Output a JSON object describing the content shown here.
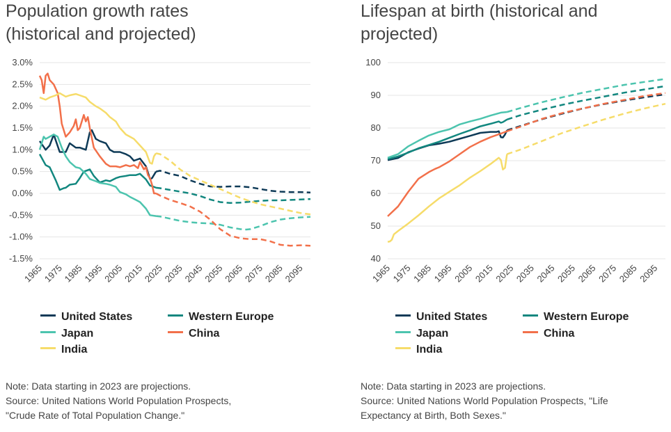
{
  "colors": {
    "United States": "#0e3a57",
    "Western Europe": "#12877f",
    "Japan": "#4cc4ae",
    "China": "#f2704a",
    "India": "#f6dc6a"
  },
  "chart_data": [
    {
      "type": "line",
      "title": "Population growth rates (historical and projected)",
      "ylim": [
        -1.5,
        3.0
      ],
      "yticks": [
        -1.5,
        -1.0,
        -0.5,
        0.0,
        0.5,
        1.0,
        1.5,
        2.0,
        2.5,
        3.0
      ],
      "ytick_labels": [
        "-1.5%",
        "-1.0%",
        "-0.5%",
        "0.0%",
        "0.5%",
        "1.0%",
        "1.5%",
        "2.0%",
        "2.5%",
        "3.0%"
      ],
      "xlim": [
        1965,
        2100
      ],
      "xticks": [
        1965,
        1975,
        1985,
        1995,
        2005,
        2015,
        2025,
        2035,
        2045,
        2055,
        2065,
        2075,
        2085,
        2095
      ],
      "xtick_labels": [
        "1965",
        "1975",
        "1985",
        "1995",
        "2005",
        "2015",
        "2025",
        "2035",
        "2045",
        "2055",
        "2065",
        "2075",
        "2085",
        "2095"
      ],
      "projection_start": 2023,
      "legend": [
        "United States",
        "Western Europe",
        "Japan",
        "China",
        "India"
      ],
      "series": [
        {
          "name": "United States",
          "x": [
            1965,
            1968,
            1970,
            1972,
            1975,
            1978,
            1980,
            1983,
            1985,
            1988,
            1990,
            1991,
            1993,
            1995,
            1998,
            2000,
            2002,
            2005,
            2008,
            2010,
            2012,
            2015,
            2018,
            2020,
            2021,
            2023,
            2025,
            2030,
            2035,
            2040,
            2045,
            2050,
            2055,
            2060,
            2065,
            2070,
            2075,
            2080,
            2085,
            2090,
            2095,
            2100
          ],
          "y": [
            1.2,
            1.0,
            1.1,
            1.35,
            0.95,
            0.95,
            1.15,
            1.05,
            1.05,
            1.0,
            1.4,
            1.45,
            1.25,
            1.2,
            1.15,
            1.0,
            0.95,
            0.95,
            0.9,
            0.85,
            0.75,
            0.8,
            0.62,
            0.33,
            0.35,
            0.5,
            0.52,
            0.45,
            0.4,
            0.3,
            0.22,
            0.16,
            0.15,
            0.16,
            0.16,
            0.14,
            0.1,
            0.06,
            0.04,
            0.03,
            0.03,
            0.02
          ]
        },
        {
          "name": "Western Europe",
          "x": [
            1965,
            1968,
            1970,
            1973,
            1975,
            1977,
            1978,
            1980,
            1983,
            1985,
            1987,
            1990,
            1992,
            1995,
            1998,
            2000,
            2003,
            2005,
            2008,
            2010,
            2013,
            2015,
            2018,
            2020,
            2022,
            2023,
            2025,
            2030,
            2035,
            2040,
            2045,
            2050,
            2055,
            2060,
            2065,
            2070,
            2075,
            2080,
            2085,
            2090,
            2095,
            2100
          ],
          "y": [
            0.9,
            0.65,
            0.6,
            0.3,
            0.08,
            0.12,
            0.13,
            0.2,
            0.22,
            0.35,
            0.5,
            0.55,
            0.4,
            0.25,
            0.3,
            0.28,
            0.35,
            0.38,
            0.4,
            0.42,
            0.42,
            0.45,
            0.32,
            0.18,
            0.15,
            0.13,
            0.12,
            0.08,
            0.04,
            0.0,
            -0.06,
            -0.14,
            -0.2,
            -0.22,
            -0.21,
            -0.19,
            -0.17,
            -0.16,
            -0.16,
            -0.15,
            -0.14,
            -0.13
          ]
        },
        {
          "name": "Japan",
          "x": [
            1965,
            1967,
            1968,
            1970,
            1972,
            1974,
            1976,
            1978,
            1980,
            1983,
            1985,
            1988,
            1990,
            1993,
            1995,
            1998,
            2000,
            2003,
            2005,
            2008,
            2010,
            2013,
            2015,
            2018,
            2020,
            2023,
            2025,
            2030,
            2035,
            2040,
            2045,
            2050,
            2055,
            2060,
            2065,
            2068,
            2070,
            2075,
            2080,
            2085,
            2090,
            2095,
            2100
          ],
          "y": [
            1.0,
            1.3,
            1.25,
            1.3,
            1.35,
            1.3,
            1.05,
            0.85,
            0.72,
            0.6,
            0.58,
            0.45,
            0.33,
            0.28,
            0.24,
            0.22,
            0.2,
            0.15,
            0.03,
            -0.02,
            -0.08,
            -0.15,
            -0.2,
            -0.35,
            -0.5,
            -0.52,
            -0.53,
            -0.58,
            -0.63,
            -0.66,
            -0.68,
            -0.69,
            -0.72,
            -0.78,
            -0.82,
            -0.83,
            -0.82,
            -0.75,
            -0.66,
            -0.6,
            -0.57,
            -0.55,
            -0.54
          ]
        },
        {
          "name": "China",
          "x": [
            1965,
            1966,
            1967,
            1968,
            1969,
            1970,
            1972,
            1974,
            1975,
            1976,
            1978,
            1980,
            1982,
            1983,
            1984,
            1985,
            1986,
            1987,
            1988,
            1989,
            1990,
            1992,
            1995,
            1998,
            2000,
            2003,
            2005,
            2008,
            2010,
            2012,
            2014,
            2015,
            2017,
            2018,
            2019,
            2020,
            2021,
            2022,
            2023,
            2025,
            2030,
            2035,
            2040,
            2045,
            2050,
            2055,
            2060,
            2065,
            2070,
            2075,
            2080,
            2085,
            2090,
            2095,
            2100
          ],
          "y": [
            2.7,
            2.6,
            2.3,
            2.7,
            2.75,
            2.6,
            2.5,
            2.3,
            2.0,
            1.6,
            1.3,
            1.4,
            1.55,
            1.7,
            1.45,
            1.5,
            1.65,
            1.8,
            1.65,
            1.75,
            1.5,
            1.05,
            0.85,
            0.68,
            0.62,
            0.62,
            0.6,
            0.65,
            0.62,
            0.65,
            0.58,
            0.72,
            0.55,
            0.6,
            0.42,
            0.35,
            0.2,
            0.0,
            0.0,
            -0.05,
            -0.15,
            -0.22,
            -0.3,
            -0.42,
            -0.6,
            -0.82,
            -0.97,
            -1.03,
            -1.05,
            -1.05,
            -1.1,
            -1.18,
            -1.2,
            -1.19,
            -1.2
          ]
        },
        {
          "name": "India",
          "x": [
            1965,
            1968,
            1970,
            1973,
            1975,
            1978,
            1980,
            1983,
            1985,
            1988,
            1990,
            1993,
            1995,
            1998,
            2000,
            2003,
            2005,
            2008,
            2010,
            2012,
            2015,
            2018,
            2020,
            2021,
            2022,
            2023,
            2025,
            2030,
            2035,
            2040,
            2045,
            2050,
            2055,
            2060,
            2065,
            2070,
            2075,
            2080,
            2085,
            2090,
            2095,
            2100
          ],
          "y": [
            2.2,
            2.15,
            2.2,
            2.25,
            2.3,
            2.22,
            2.25,
            2.28,
            2.25,
            2.2,
            2.1,
            2.0,
            1.95,
            1.85,
            1.75,
            1.65,
            1.5,
            1.35,
            1.3,
            1.25,
            1.1,
            0.95,
            0.7,
            0.68,
            0.85,
            0.92,
            0.9,
            0.75,
            0.55,
            0.4,
            0.3,
            0.2,
            0.1,
            0.0,
            -0.1,
            -0.18,
            -0.25,
            -0.3,
            -0.35,
            -0.4,
            -0.45,
            -0.48
          ]
        }
      ]
    },
    {
      "type": "line",
      "title": "Lifespan at birth (historical and projected)",
      "ylim": [
        40,
        100
      ],
      "yticks": [
        40,
        50,
        60,
        70,
        80,
        90,
        100
      ],
      "ytick_labels": [
        "40",
        "50",
        "60",
        "70",
        "80",
        "90",
        "100"
      ],
      "xlim": [
        1965,
        2100
      ],
      "xticks": [
        1965,
        1975,
        1985,
        1995,
        2005,
        2015,
        2025,
        2035,
        2045,
        2055,
        2065,
        2075,
        2085,
        2095
      ],
      "xtick_labels": [
        "1965",
        "1975",
        "1985",
        "1995",
        "2005",
        "2015",
        "2025",
        "2035",
        "2045",
        "2055",
        "2065",
        "2075",
        "2085",
        "2095"
      ],
      "projection_start": 2023,
      "legend": [
        "United States",
        "Western Europe",
        "Japan",
        "China",
        "India"
      ],
      "series": [
        {
          "name": "United States",
          "x": [
            1965,
            1970,
            1975,
            1980,
            1985,
            1990,
            1995,
            2000,
            2005,
            2010,
            2015,
            2018,
            2019,
            2020,
            2021,
            2022,
            2023,
            2030,
            2040,
            2050,
            2060,
            2070,
            2080,
            2090,
            2100
          ],
          "y": [
            70.2,
            70.8,
            72.6,
            73.7,
            74.7,
            75.2,
            75.8,
            76.7,
            77.6,
            78.5,
            78.8,
            78.8,
            79.0,
            77.2,
            77.1,
            78.0,
            79.3,
            80.7,
            82.7,
            84.4,
            86.0,
            87.3,
            88.4,
            89.4,
            90.3
          ]
        },
        {
          "name": "Western Europe",
          "x": [
            1965,
            1970,
            1975,
            1980,
            1985,
            1990,
            1995,
            2000,
            2005,
            2010,
            2015,
            2019,
            2020,
            2021,
            2023,
            2030,
            2040,
            2050,
            2060,
            2070,
            2080,
            2090,
            2100
          ],
          "y": [
            70.5,
            71.3,
            72.5,
            73.8,
            74.8,
            75.8,
            77.0,
            78.2,
            79.3,
            80.5,
            81.3,
            82.0,
            81.6,
            81.8,
            82.6,
            84.0,
            85.6,
            87.1,
            88.4,
            89.6,
            90.8,
            91.8,
            92.8
          ]
        },
        {
          "name": "Japan",
          "x": [
            1965,
            1970,
            1975,
            1980,
            1985,
            1990,
            1995,
            2000,
            2005,
            2010,
            2015,
            2020,
            2023,
            2030,
            2040,
            2050,
            2060,
            2070,
            2080,
            2090,
            2100
          ],
          "y": [
            70.9,
            72.0,
            74.4,
            76.1,
            77.7,
            78.8,
            79.6,
            81.1,
            82.0,
            82.8,
            83.8,
            84.7,
            84.9,
            86.2,
            87.9,
            89.4,
            90.8,
            92.0,
            93.2,
            94.1,
            95.0
          ]
        },
        {
          "name": "China",
          "x": [
            1965,
            1970,
            1975,
            1980,
            1985,
            1988,
            1990,
            1995,
            2000,
            2005,
            2010,
            2015,
            2020,
            2023,
            2030,
            2040,
            2050,
            2060,
            2070,
            2080,
            2090,
            2100
          ],
          "y": [
            53.0,
            56.0,
            60.5,
            64.5,
            66.5,
            67.5,
            68.0,
            69.8,
            72.0,
            74.2,
            75.8,
            77.2,
            78.3,
            79.0,
            80.5,
            82.8,
            84.6,
            86.0,
            87.4,
            88.6,
            89.8,
            90.7
          ]
        },
        {
          "name": "India",
          "x": [
            1965,
            1966,
            1967,
            1968,
            1970,
            1975,
            1980,
            1985,
            1990,
            1995,
            2000,
            2005,
            2010,
            2015,
            2019,
            2020,
            2021,
            2022,
            2023,
            2030,
            2040,
            2050,
            2060,
            2070,
            2080,
            2090,
            2100
          ],
          "y": [
            45.2,
            45.3,
            45.8,
            47.5,
            48.5,
            50.8,
            53.3,
            56.0,
            58.5,
            60.5,
            62.5,
            64.8,
            66.8,
            69.0,
            70.9,
            70.2,
            67.3,
            67.8,
            72.0,
            73.5,
            76.0,
            78.5,
            80.6,
            82.6,
            84.4,
            86.0,
            87.4
          ]
        }
      ]
    }
  ],
  "panels": [
    {
      "title_line1": "Population growth rates",
      "title_line2": "(historical and projected)",
      "note": "Note: Data starting in 2023 are projections.",
      "source_line1": "Source: United Nations World Population Prospects,",
      "source_line2": "\"Crude Rate of Total Population Change.\""
    },
    {
      "title_line1": "Lifespan at birth (historical and",
      "title_line2": "projected)",
      "note": "Note: Data starting in 2023 are projections.",
      "source_line1": "Source: United Nations World Population Prospects, \"Life",
      "source_line2": "Expectancy at Birth, Both Sexes.\""
    }
  ],
  "legend_labels": {
    "us": "United States",
    "we": "Western Europe",
    "japan": "Japan",
    "china": "China",
    "india": "India"
  }
}
